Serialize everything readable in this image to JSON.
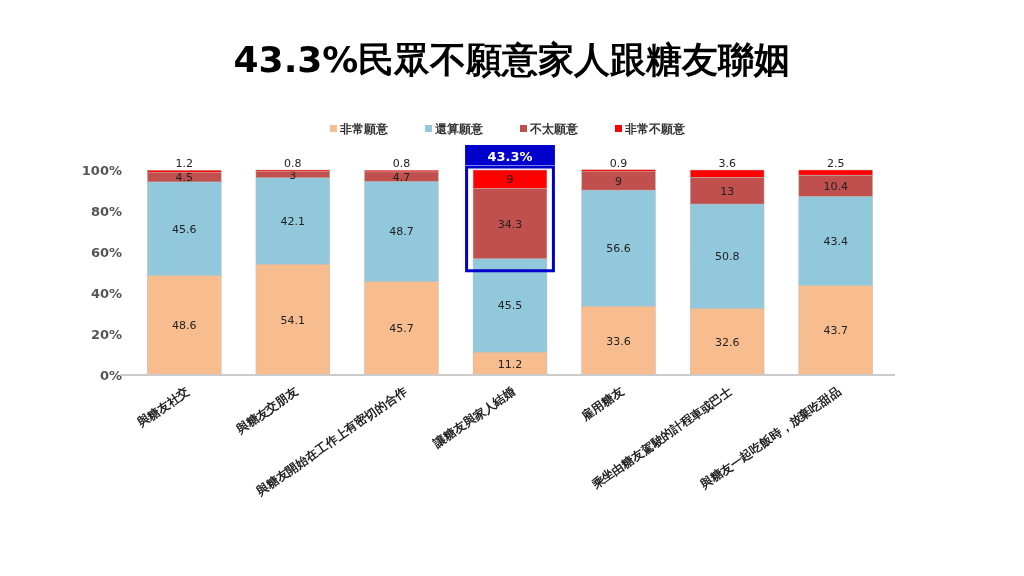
{
  "chart_data": {
    "type": "bar",
    "stacked": true,
    "title": "43.3%民眾不願意家人跟糖友聯姻",
    "categories": [
      "與糖友社交",
      "與糖友交朋友",
      "與糖友開始在工作上有密切的合作",
      "讓糖友與家人結婚",
      "雇用糖友",
      "乘坐由糖友駕駛的計程車或巴士",
      "與糖友一起吃飯時，放棄吃甜品"
    ],
    "series": [
      {
        "name": "非常願意",
        "color": "#f8bd8e",
        "values": [
          48.6,
          54.1,
          45.7,
          11.2,
          33.6,
          32.6,
          43.7
        ]
      },
      {
        "name": "還算願意",
        "color": "#92c8dc",
        "values": [
          45.6,
          42.1,
          48.7,
          45.5,
          56.6,
          50.8,
          43.4
        ]
      },
      {
        "name": "不太願意",
        "color": "#c0504d",
        "values": [
          4.5,
          3,
          4.7,
          34.3,
          9,
          13,
          10.4
        ]
      },
      {
        "name": "非常不願意",
        "color": "#ff0000",
        "values": [
          1.2,
          0.8,
          0.8,
          9,
          0.9,
          3.6,
          2.5
        ]
      }
    ],
    "ylim": [
      0,
      100
    ],
    "yticks": [
      {
        "value": 0,
        "label": "0%"
      },
      {
        "value": 20,
        "label": "20%"
      },
      {
        "value": 40,
        "label": "40%"
      },
      {
        "value": 60,
        "label": "60%"
      },
      {
        "value": 80,
        "label": "80%"
      },
      {
        "value": 100,
        "label": "100%"
      }
    ],
    "data_labels": true,
    "legend": "top",
    "grid": false,
    "annotations": [
      {
        "text": "43.3%",
        "x": "讓糖友與家人結婚",
        "y": 100
      }
    ]
  }
}
